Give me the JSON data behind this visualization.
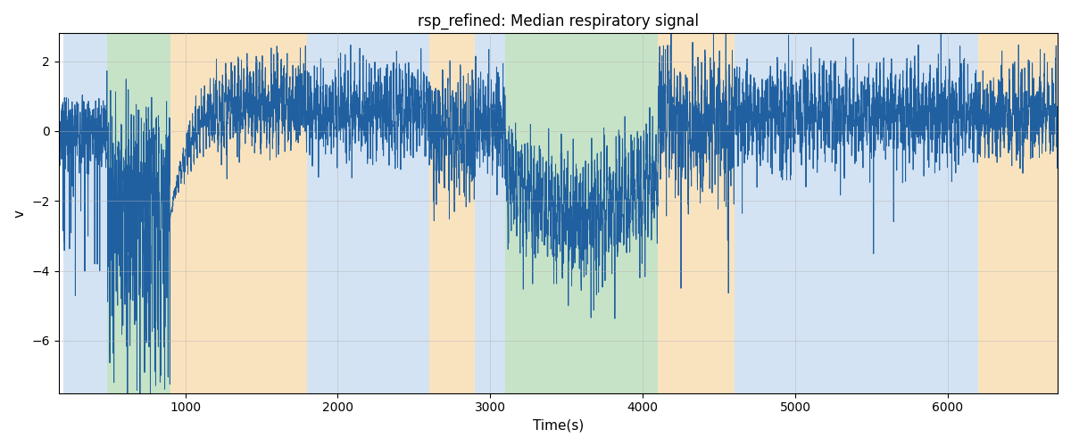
{
  "title": "rsp_refined: Median respiratory signal",
  "xlabel": "Time(s)",
  "ylabel": "v",
  "xlim": [
    170,
    6720
  ],
  "ylim": [
    -7.5,
    2.8
  ],
  "yticks": [
    2,
    0,
    -2,
    -4,
    -6
  ],
  "xticks": [
    1000,
    2000,
    3000,
    4000,
    5000,
    6000
  ],
  "line_color": "#2060a0",
  "line_width": 0.7,
  "background_color": "#ffffff",
  "grid_color": "#b0b0b0",
  "grid_alpha": 0.6,
  "title_fontsize": 12,
  "label_fontsize": 11,
  "bg_regions": [
    {
      "xmin": 200,
      "xmax": 490,
      "color": "#a8c8e8",
      "alpha": 0.5
    },
    {
      "xmin": 490,
      "xmax": 900,
      "color": "#90c890",
      "alpha": 0.5
    },
    {
      "xmin": 900,
      "xmax": 1800,
      "color": "#f5c880",
      "alpha": 0.5
    },
    {
      "xmin": 1800,
      "xmax": 2600,
      "color": "#a8c8e8",
      "alpha": 0.5
    },
    {
      "xmin": 2600,
      "xmax": 2900,
      "color": "#f5c880",
      "alpha": 0.5
    },
    {
      "xmin": 2900,
      "xmax": 3100,
      "color": "#a8c8e8",
      "alpha": 0.5
    },
    {
      "xmin": 3100,
      "xmax": 4100,
      "color": "#90c890",
      "alpha": 0.5
    },
    {
      "xmin": 4100,
      "xmax": 4600,
      "color": "#f5c880",
      "alpha": 0.5
    },
    {
      "xmin": 4600,
      "xmax": 6200,
      "color": "#a8c8e8",
      "alpha": 0.5
    },
    {
      "xmin": 6200,
      "xmax": 6720,
      "color": "#f5c880",
      "alpha": 0.5
    }
  ]
}
